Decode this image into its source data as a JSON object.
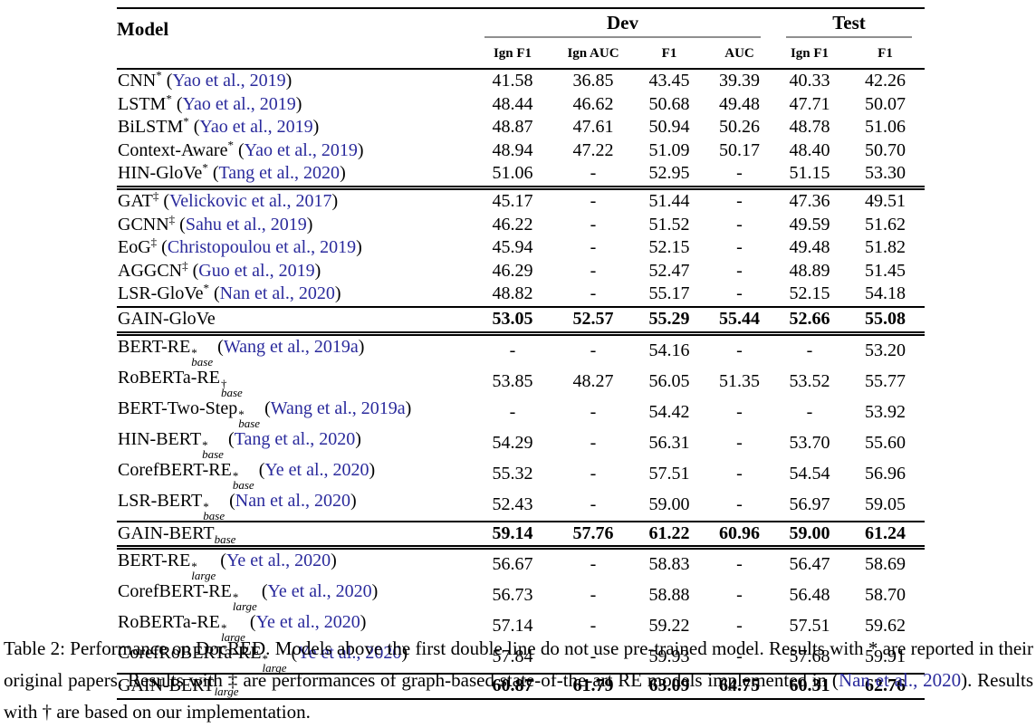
{
  "colors": {
    "citation_blue": "#2a2a9c",
    "rule_black": "#000000",
    "cmidrule_gray": "#8f8f8f",
    "background": "#ffffff"
  },
  "table": {
    "model_header": "Model",
    "col_groups": [
      {
        "label": "Dev",
        "span": 4
      },
      {
        "label": "Test",
        "span": 2
      }
    ],
    "sub_headers": [
      "Ign F1",
      "Ign AUC",
      "F1",
      "AUC",
      "Ign F1",
      "F1"
    ],
    "rows": [
      {
        "model": {
          "name": "CNN",
          "sup": "*",
          "sub": "",
          "cite": "Yao et al., 2019"
        },
        "values": [
          "41.58",
          "36.85",
          "43.45",
          "39.39",
          "40.33",
          "42.26"
        ],
        "bold": false,
        "sep": ""
      },
      {
        "model": {
          "name": "LSTM",
          "sup": "*",
          "sub": "",
          "cite": "Yao et al., 2019"
        },
        "values": [
          "48.44",
          "46.62",
          "50.68",
          "49.48",
          "47.71",
          "50.07"
        ],
        "bold": false,
        "sep": ""
      },
      {
        "model": {
          "name": "BiLSTM",
          "sup": "*",
          "sub": "",
          "cite": "Yao et al., 2019"
        },
        "values": [
          "48.87",
          "47.61",
          "50.94",
          "50.26",
          "48.78",
          "51.06"
        ],
        "bold": false,
        "sep": ""
      },
      {
        "model": {
          "name": "Context-Aware",
          "sup": "*",
          "sub": "",
          "cite": "Yao et al., 2019"
        },
        "values": [
          "48.94",
          "47.22",
          "51.09",
          "50.17",
          "48.40",
          "50.70"
        ],
        "bold": false,
        "sep": ""
      },
      {
        "model": {
          "name": "HIN-GloVe",
          "sup": "*",
          "sub": "",
          "cite": "Tang et al., 2020"
        },
        "values": [
          "51.06",
          "-",
          "52.95",
          "-",
          "51.15",
          "53.30"
        ],
        "bold": false,
        "sep": ""
      },
      {
        "model": {
          "name": "GAT",
          "sup": "‡",
          "sub": "",
          "cite": "Velickovic et al., 2017"
        },
        "values": [
          "45.17",
          "-",
          "51.44",
          "-",
          "47.36",
          "49.51"
        ],
        "bold": false,
        "sep": "double"
      },
      {
        "model": {
          "name": "GCNN",
          "sup": "‡",
          "sub": "",
          "cite": "Sahu et al., 2019"
        },
        "values": [
          "46.22",
          "-",
          "51.52",
          "-",
          "49.59",
          "51.62"
        ],
        "bold": false,
        "sep": ""
      },
      {
        "model": {
          "name": "EoG",
          "sup": "‡",
          "sub": "",
          "cite": "Christopoulou et al., 2019"
        },
        "values": [
          "45.94",
          "-",
          "52.15",
          "-",
          "49.48",
          "51.82"
        ],
        "bold": false,
        "sep": ""
      },
      {
        "model": {
          "name": "AGGCN",
          "sup": "‡",
          "sub": "",
          "cite": "Guo et al., 2019"
        },
        "values": [
          "46.29",
          "-",
          "52.47",
          "-",
          "48.89",
          "51.45"
        ],
        "bold": false,
        "sep": ""
      },
      {
        "model": {
          "name": "LSR-GloVe",
          "sup": "*",
          "sub": "",
          "cite": "Nan et al., 2020"
        },
        "values": [
          "48.82",
          "-",
          "55.17",
          "-",
          "52.15",
          "54.18"
        ],
        "bold": false,
        "sep": ""
      },
      {
        "model": {
          "name": "GAIN-GloVe",
          "sup": "",
          "sub": "",
          "cite": ""
        },
        "values": [
          "53.05",
          "52.57",
          "55.29",
          "55.44",
          "52.66",
          "55.08"
        ],
        "bold": true,
        "sep": "single"
      },
      {
        "model": {
          "name": "BERT-RE",
          "sup": "*",
          "sub": "base",
          "cite": "Wang et al., 2019a"
        },
        "values": [
          "-",
          "-",
          "54.16",
          "-",
          "-",
          "53.20"
        ],
        "bold": false,
        "sep": "double"
      },
      {
        "model": {
          "name": "RoBERTa-RE",
          "sup": "†",
          "sub": "base",
          "cite": ""
        },
        "values": [
          "53.85",
          "48.27",
          "56.05",
          "51.35",
          "53.52",
          "55.77"
        ],
        "bold": false,
        "sep": ""
      },
      {
        "model": {
          "name": "BERT-Two-Step",
          "sup": "*",
          "sub": "base",
          "cite": "Wang et al., 2019a"
        },
        "values": [
          "-",
          "-",
          "54.42",
          "-",
          "-",
          "53.92"
        ],
        "bold": false,
        "sep": ""
      },
      {
        "model": {
          "name": "HIN-BERT",
          "sup": "*",
          "sub": "base",
          "cite": "Tang et al., 2020"
        },
        "values": [
          "54.29",
          "-",
          "56.31",
          "-",
          "53.70",
          "55.60"
        ],
        "bold": false,
        "sep": ""
      },
      {
        "model": {
          "name": "CorefBERT-RE",
          "sup": "*",
          "sub": "base",
          "cite": "Ye et al., 2020"
        },
        "values": [
          "55.32",
          "-",
          "57.51",
          "-",
          "54.54",
          "56.96"
        ],
        "bold": false,
        "sep": ""
      },
      {
        "model": {
          "name": "LSR-BERT",
          "sup": "*",
          "sub": "base",
          "cite": "Nan et al., 2020"
        },
        "values": [
          "52.43",
          "-",
          "59.00",
          "-",
          "56.97",
          "59.05"
        ],
        "bold": false,
        "sep": ""
      },
      {
        "model": {
          "name": "GAIN-BERT",
          "sup": "",
          "sub": "base",
          "cite": ""
        },
        "values": [
          "59.14",
          "57.76",
          "61.22",
          "60.96",
          "59.00",
          "61.24"
        ],
        "bold": true,
        "sep": "single"
      },
      {
        "model": {
          "name": "BERT-RE",
          "sup": "*",
          "sub": "large",
          "cite": "Ye et al., 2020"
        },
        "values": [
          "56.67",
          "-",
          "58.83",
          "-",
          "56.47",
          "58.69"
        ],
        "bold": false,
        "sep": "double"
      },
      {
        "model": {
          "name": "CorefBERT-RE",
          "sup": "*",
          "sub": "large",
          "cite": "Ye et al., 2020"
        },
        "values": [
          "56.73",
          "-",
          "58.88",
          "-",
          "56.48",
          "58.70"
        ],
        "bold": false,
        "sep": ""
      },
      {
        "model": {
          "name": "RoBERTa-RE",
          "sup": "*",
          "sub": "large",
          "cite": "Ye et al., 2020"
        },
        "values": [
          "57.14",
          "-",
          "59.22",
          "-",
          "57.51",
          "59.62"
        ],
        "bold": false,
        "sep": ""
      },
      {
        "model": {
          "name": "CorefRoBERTa-RE",
          "sup": "*",
          "sub": "large",
          "cite": "Ye et al., 2020"
        },
        "values": [
          "57.84",
          "-",
          "59.93",
          "-",
          "57.68",
          "59.91"
        ],
        "bold": false,
        "sep": ""
      },
      {
        "model": {
          "name": "GAIN-BERT",
          "sup": "",
          "sub": "large",
          "cite": ""
        },
        "values": [
          "60.87",
          "61.79",
          "63.09",
          "64.75",
          "60.31",
          "62.76"
        ],
        "bold": true,
        "sep": "single"
      }
    ]
  },
  "caption": {
    "parts": [
      {
        "text": "Table 2: Performance on DocRED. Models above the first double line do not use pre-trained model. Results with * are reported in their original papers. Results with ‡ are performances of graph-based state-of-the-art RE models implemented in (",
        "link": false
      },
      {
        "text": "Nan et al., 2020",
        "link": true
      },
      {
        "text": "). Results with † are based on our implementation.",
        "link": false
      }
    ]
  }
}
